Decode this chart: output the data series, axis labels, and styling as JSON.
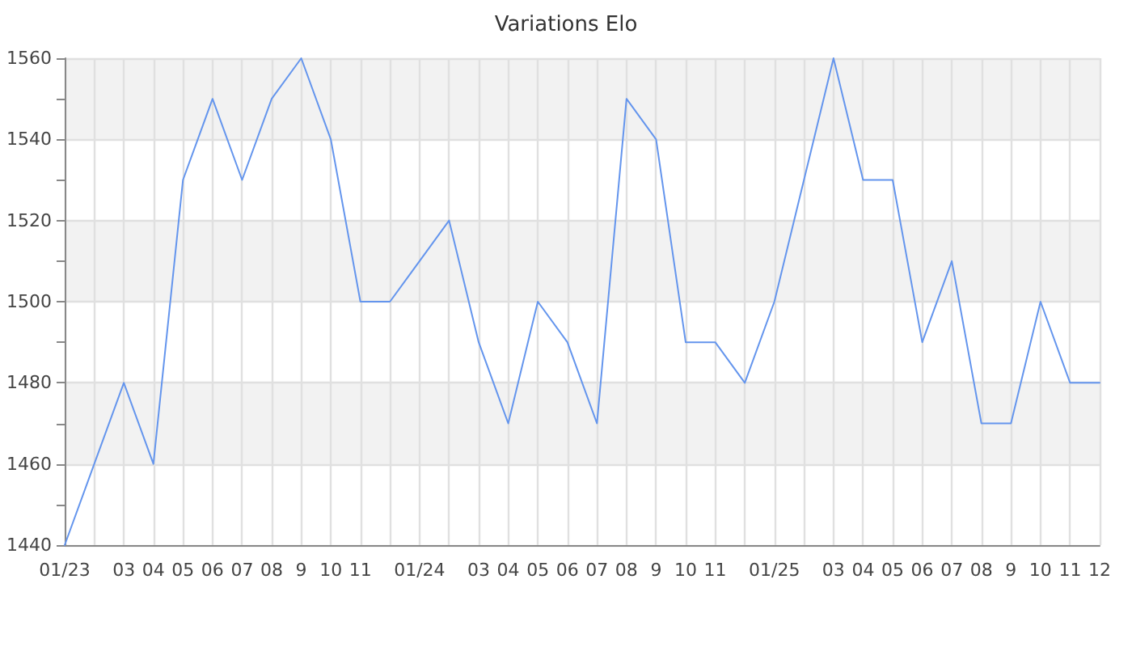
{
  "chart_data": {
    "type": "line",
    "title": "Variations Elo",
    "categories": [
      "01/23",
      null,
      "03",
      "04",
      "05",
      "06",
      "07",
      "08",
      "9",
      "10",
      "11",
      null,
      "01/24",
      null,
      "03",
      "04",
      "05",
      "06",
      "07",
      "08",
      "9",
      "10",
      "11",
      null,
      "01/25",
      null,
      "03",
      "04",
      "05",
      "06",
      "07",
      "08",
      "9",
      "10",
      "11",
      "12"
    ],
    "series": [
      {
        "color": "#6495ed",
        "values": [
          1440,
          1460,
          1480,
          1460,
          1530,
          1550,
          1530,
          1550,
          1560,
          1540,
          1500,
          1500,
          1510,
          1520,
          1490,
          1470,
          1500,
          1490,
          1470,
          1550,
          1540,
          1490,
          1490,
          1480,
          1500,
          1530,
          1560,
          1530,
          1530,
          1490,
          1510,
          1470,
          1470,
          1500,
          1480,
          1480
        ]
      }
    ],
    "ylim": [
      1440,
      1560
    ],
    "yticks": [
      1440,
      {
        "value": 1450,
        "label": null
      },
      1460,
      {
        "value": 1470,
        "label": null
      },
      1480,
      {
        "value": 1490,
        "label": null
      },
      1500,
      {
        "value": 1510,
        "label": null
      },
      1520,
      {
        "value": 1530,
        "label": null
      },
      1540,
      {
        "value": 1550,
        "label": null
      },
      1560
    ],
    "bands": [
      {
        "axis": "y",
        "from": 1460,
        "to": 1480,
        "color": "#f2f2f2"
      },
      {
        "axis": "y",
        "from": 1500,
        "to": 1520,
        "color": "#f2f2f2"
      },
      {
        "axis": "y",
        "from": 1540,
        "to": 1560,
        "color": "#f2f2f2"
      }
    ],
    "grid": true,
    "marker": "none",
    "line_style": "solid"
  }
}
